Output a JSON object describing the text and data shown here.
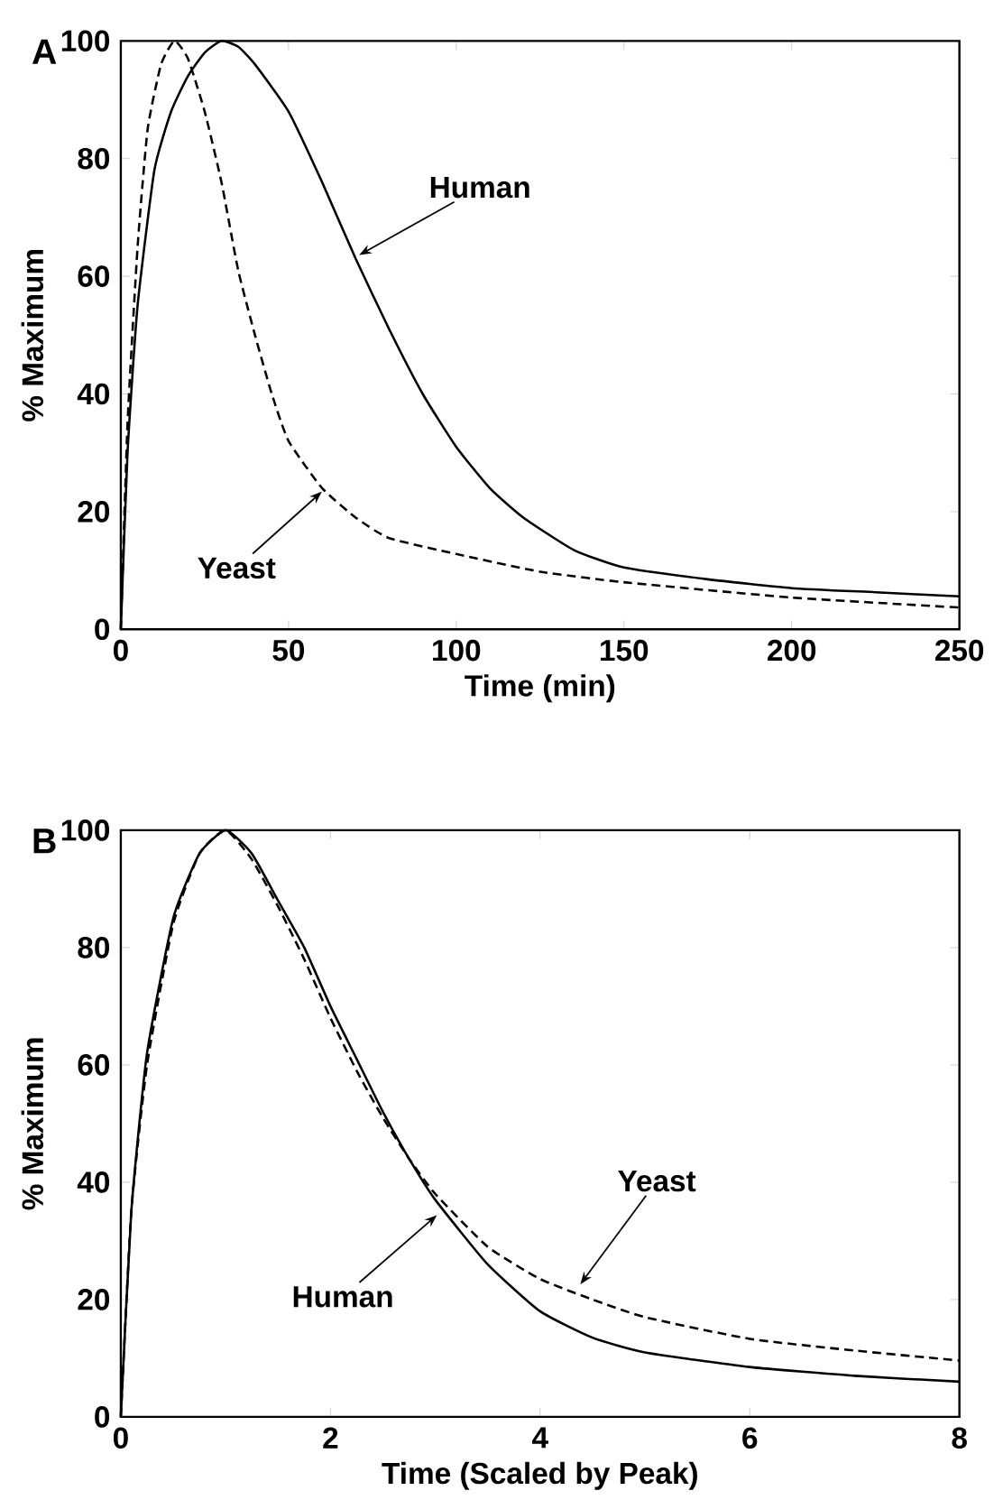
{
  "chart_data": [
    {
      "type": "line",
      "title": "A",
      "xlabel": "Time (min)",
      "ylabel": "% Maximum",
      "xlim": [
        0,
        250
      ],
      "xticks": [
        0,
        50,
        100,
        150,
        200,
        250
      ],
      "ylim": [
        0,
        100
      ],
      "yticks": [
        0,
        20,
        40,
        60,
        80,
        100
      ],
      "grid": false,
      "marker": "none",
      "series": [
        {
          "name": null,
          "color": "#000000",
          "line_style": "solid",
          "x": [
            0,
            2,
            5,
            10,
            15,
            20,
            25,
            30,
            35,
            40,
            50,
            60,
            70,
            80,
            90,
            100,
            110,
            120,
            135,
            150,
            175,
            200,
            225,
            250
          ],
          "values": [
            0,
            30,
            55,
            78,
            88,
            94,
            98,
            100,
            99,
            96,
            88,
            76,
            63,
            51,
            40,
            31,
            24,
            19,
            13.5,
            10.5,
            8.5,
            7,
            6.3,
            5.6
          ]
        },
        {
          "name": null,
          "color": "#000000",
          "line_style": "dashed",
          "x": [
            0,
            2,
            5,
            8,
            12,
            16,
            20,
            25,
            30,
            35,
            40,
            45,
            50,
            60,
            70,
            80,
            100,
            125,
            150,
            200,
            250
          ],
          "values": [
            0,
            35,
            65,
            85,
            96,
            100,
            97,
            88,
            76,
            61,
            50,
            40,
            32,
            24,
            19,
            15.5,
            12.8,
            9.8,
            8,
            5.4,
            3.7
          ]
        }
      ],
      "annotations": [
        {
          "text": "Human",
          "x": 70,
          "y": 63
        },
        {
          "text": "Yeast",
          "x": 61,
          "y": 24
        }
      ]
    },
    {
      "type": "line",
      "title": "B",
      "xlabel": "Time (Scaled by Peak)",
      "ylabel": "% Maximum",
      "xlim": [
        0,
        8
      ],
      "xticks": [
        0,
        2,
        4,
        6,
        8
      ],
      "ylim": [
        0,
        100
      ],
      "yticks": [
        0,
        20,
        40,
        60,
        80,
        100
      ],
      "grid": false,
      "marker": "none",
      "series": [
        {
          "name": null,
          "color": "#000000",
          "line_style": "solid",
          "x": [
            0,
            0.1,
            0.25,
            0.5,
            0.75,
            1,
            1.25,
            1.5,
            1.75,
            2,
            2.25,
            2.5,
            2.75,
            3,
            3.5,
            4,
            4.5,
            5,
            6,
            7,
            8
          ],
          "values": [
            0,
            35,
            62,
            85,
            96,
            100,
            96,
            88,
            80,
            70,
            61,
            52,
            44,
            37,
            26,
            18,
            13.5,
            11,
            8.5,
            7,
            6
          ]
        },
        {
          "name": null,
          "color": "#000000",
          "line_style": "dashed",
          "x": [
            0,
            0.1,
            0.25,
            0.5,
            0.75,
            1,
            1.25,
            1.5,
            1.75,
            2,
            2.25,
            2.5,
            2.75,
            3,
            3.5,
            4,
            4.5,
            5,
            6,
            7,
            8
          ],
          "values": [
            0,
            35,
            60,
            84,
            96,
            100,
            95,
            87,
            78,
            68,
            59,
            51,
            44,
            38,
            29,
            23.5,
            20,
            17,
            13.3,
            11.3,
            9.6
          ]
        }
      ],
      "annotations": [
        {
          "text": "Human",
          "x": 3.05,
          "y": 35
        },
        {
          "text": "Yeast",
          "x": 4.35,
          "y": 22
        }
      ]
    }
  ]
}
